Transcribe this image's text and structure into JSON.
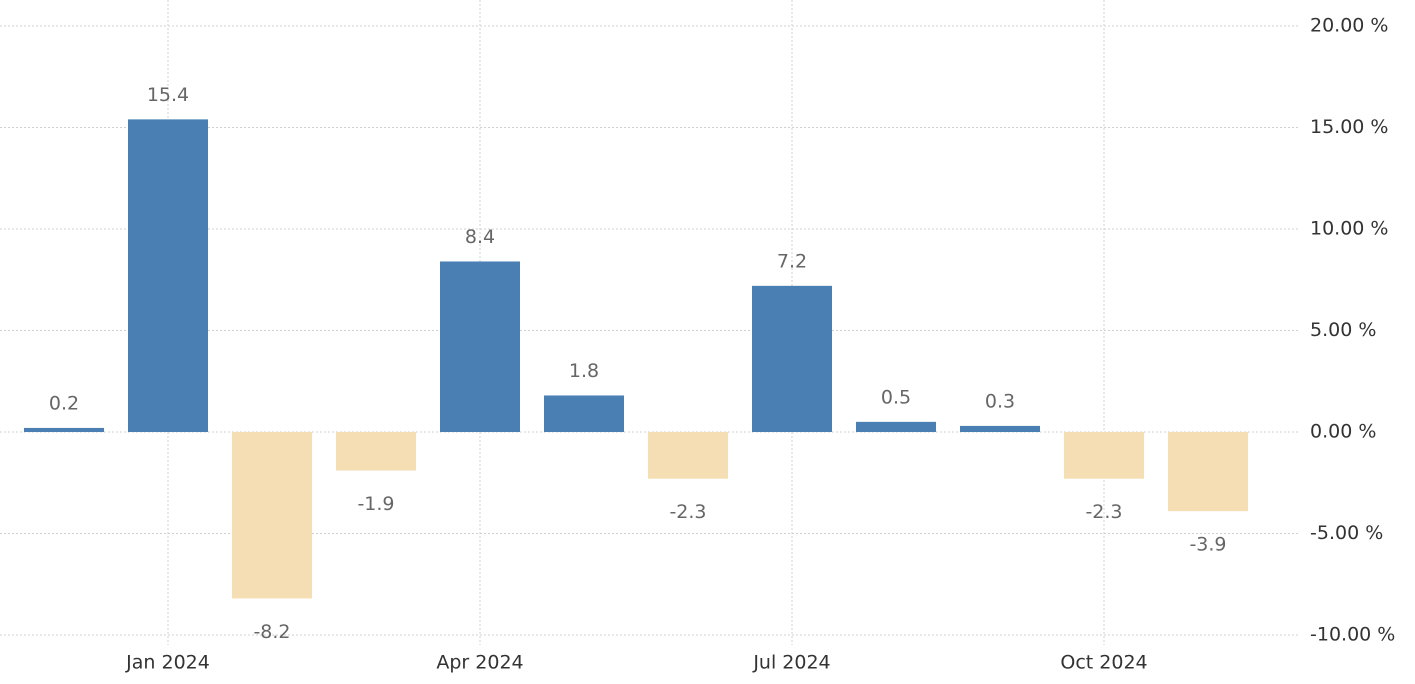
{
  "chart_data": {
    "type": "bar",
    "categories": [
      null,
      "Jan 2024",
      null,
      null,
      "Apr 2024",
      null,
      null,
      "Jul 2024",
      null,
      null,
      "Oct 2024",
      null
    ],
    "values": [
      0.2,
      15.4,
      -8.2,
      -1.9,
      8.4,
      1.8,
      -2.3,
      7.2,
      0.5,
      0.3,
      -2.3,
      -3.9
    ],
    "color": "#4a7fb3",
    "negative_color": "#f5deb3",
    "ylim": [
      -10,
      20
    ],
    "yticks": [
      {
        "value": -10,
        "label": "-10.00 %"
      },
      {
        "value": -5,
        "label": "-5.00 %"
      },
      {
        "value": 0,
        "label": "0.00 %"
      },
      {
        "value": 5,
        "label": "5.00 %"
      },
      {
        "value": 10,
        "label": "10.00 %"
      },
      {
        "value": 15,
        "label": "15.00 %"
      },
      {
        "value": 20,
        "label": "20.00 %"
      }
    ],
    "grid": true
  }
}
